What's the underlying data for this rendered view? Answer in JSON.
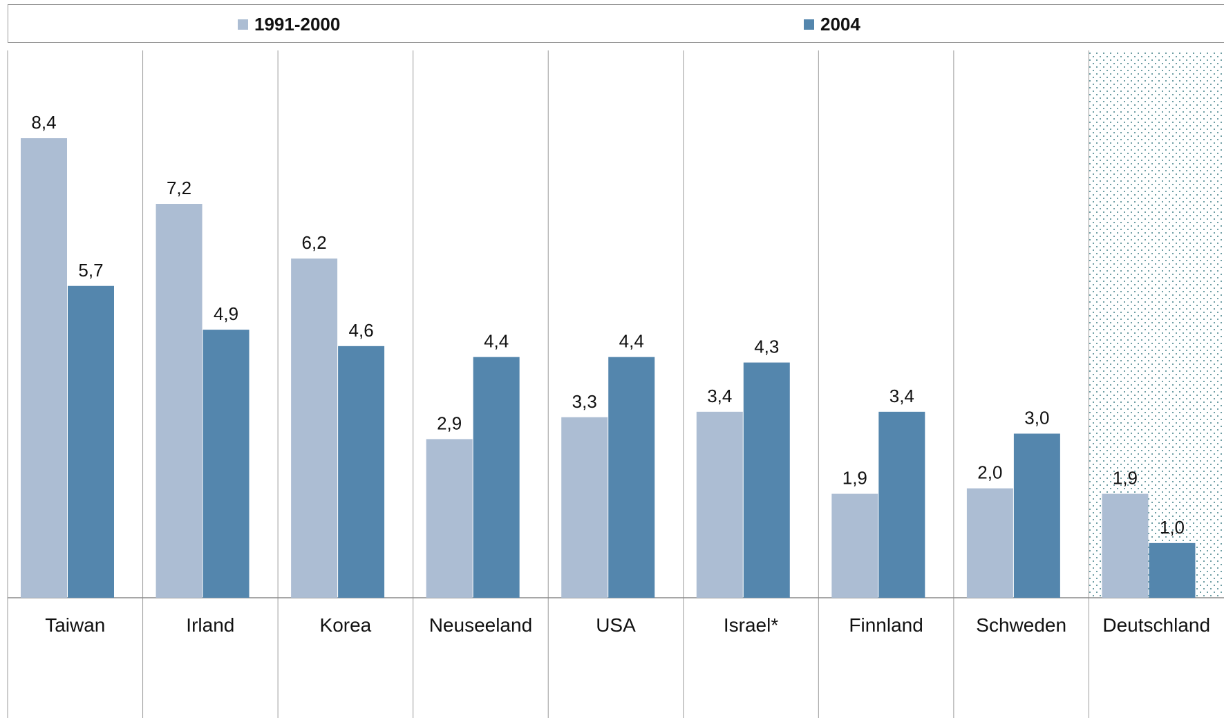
{
  "chart_data": {
    "type": "bar",
    "categories": [
      "Taiwan",
      "Irland",
      "Korea",
      "Neuseeland",
      "USA",
      "Israel*",
      "Finnland",
      "Schweden",
      "Deutschland"
    ],
    "series": [
      {
        "name": "1991-2000",
        "color": "#acbdd3",
        "values": [
          8.4,
          7.2,
          6.2,
          2.9,
          3.3,
          3.4,
          1.9,
          2.0,
          1.9
        ],
        "labels": [
          "8,4",
          "7,2",
          "6,2",
          "2,9",
          "3,3",
          "3,4",
          "1,9",
          "2,0",
          "1,9"
        ]
      },
      {
        "name": "2004",
        "color": "#5486ad",
        "values": [
          5.7,
          4.9,
          4.6,
          4.4,
          4.4,
          4.3,
          3.4,
          3.0,
          1.0
        ],
        "labels": [
          "5,7",
          "4,9",
          "4,6",
          "4,4",
          "4,4",
          "4,3",
          "3,4",
          "3,0",
          "1,0"
        ]
      }
    ],
    "ylim": [
      0,
      10
    ],
    "legend": "top",
    "highlighted_category": "Deutschland",
    "highlight_pattern": "dotted",
    "grid": false
  },
  "legend": {
    "items": [
      {
        "label": "1991-2000",
        "color": "#acbdd3"
      },
      {
        "label": "2004",
        "color": "#5486ad"
      }
    ]
  }
}
